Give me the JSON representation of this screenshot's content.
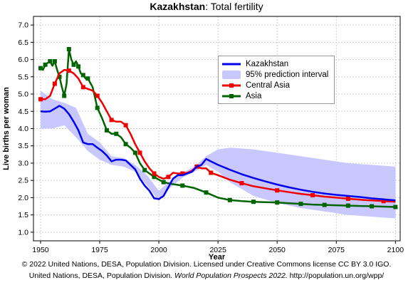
{
  "header": {
    "title_bold": "Kazakhstan",
    "title_rest": ": Total fertility"
  },
  "footer": {
    "line1": "© 2022 United Nations, DESA, Population Division. Licensed under Creative Commons license CC BY 3.0 IGO.",
    "line2_a": "United Nations, DESA, Population Division. ",
    "line2_italic": "World Population Prospects 2022.",
    "line2_b": " http://population.un.org/wpp/"
  },
  "chart_data": {
    "type": "line",
    "title": "Kazakhstan: Total fertility",
    "xlabel": "Year",
    "ylabel": "Live births per woman",
    "xlim": [
      1947,
      2102
    ],
    "ylim": [
      0.75,
      7.25
    ],
    "xticks": [
      1950,
      1975,
      2000,
      2025,
      2050,
      2075,
      2100
    ],
    "yticks": [
      1.0,
      1.5,
      2.0,
      2.5,
      3.0,
      3.5,
      4.0,
      4.5,
      5.0,
      5.5,
      6.0,
      6.5,
      7.0
    ],
    "grid": true,
    "legend_position": "upper-right",
    "colors": {
      "kazakhstan": "#0000ee",
      "interval": "#c8c8ff",
      "central_asia": "#ee0000",
      "asia": "#006400"
    },
    "legend": [
      {
        "key": "kazakhstan",
        "label": "Kazakhstan",
        "kind": "line"
      },
      {
        "key": "interval",
        "label": "95% prediction interval",
        "kind": "band"
      },
      {
        "key": "central_asia",
        "label": "Central Asia",
        "kind": "line-marker"
      },
      {
        "key": "asia",
        "label": "Asia",
        "kind": "line-marker"
      }
    ],
    "series": [
      {
        "name": "Kazakhstan",
        "key": "kazakhstan",
        "x": [
          1950,
          1952,
          1954,
          1956,
          1958,
          1960,
          1962,
          1964,
          1966,
          1968,
          1970,
          1972,
          1974,
          1976,
          1978,
          1980,
          1982,
          1984,
          1986,
          1988,
          1990,
          1992,
          1994,
          1996,
          1998,
          2000,
          2002,
          2004,
          2006,
          2008,
          2010,
          2012,
          2014,
          2016,
          2018,
          2020,
          2022,
          2025,
          2030,
          2035,
          2040,
          2045,
          2050,
          2055,
          2060,
          2065,
          2070,
          2075,
          2080,
          2085,
          2090,
          2095,
          2100
        ],
        "y": [
          4.5,
          4.49,
          4.5,
          4.58,
          4.66,
          4.58,
          4.42,
          4.2,
          3.95,
          3.6,
          3.55,
          3.55,
          3.45,
          3.35,
          3.22,
          3.05,
          3.1,
          3.1,
          3.08,
          2.95,
          2.82,
          2.55,
          2.35,
          2.2,
          1.98,
          1.96,
          2.05,
          2.3,
          2.55,
          2.65,
          2.65,
          2.7,
          2.75,
          2.9,
          2.95,
          3.12,
          3.05,
          2.95,
          2.81,
          2.68,
          2.57,
          2.47,
          2.38,
          2.3,
          2.23,
          2.17,
          2.12,
          2.08,
          2.05,
          2.02,
          1.98,
          1.95,
          1.92
        ]
      },
      {
        "name": "Central Asia",
        "key": "central_asia",
        "x": [
          1950,
          1952,
          1954,
          1956,
          1958,
          1960,
          1962,
          1964,
          1966,
          1968,
          1970,
          1972,
          1974,
          1976,
          1978,
          1980,
          1982,
          1984,
          1986,
          1988,
          1990,
          1992,
          1994,
          1996,
          1998,
          2000,
          2002,
          2004,
          2006,
          2008,
          2010,
          2012,
          2014,
          2016,
          2018,
          2020,
          2022,
          2025,
          2030,
          2035,
          2040,
          2045,
          2050,
          2055,
          2060,
          2065,
          2070,
          2075,
          2080,
          2085,
          2090,
          2095,
          2100
        ],
        "y": [
          4.85,
          4.85,
          4.95,
          5.3,
          5.6,
          5.7,
          5.68,
          5.6,
          5.45,
          5.2,
          5.15,
          5.1,
          4.95,
          4.75,
          4.5,
          4.25,
          4.2,
          4.2,
          4.1,
          3.85,
          3.55,
          3.3,
          3.05,
          2.85,
          2.7,
          2.6,
          2.55,
          2.6,
          2.72,
          2.7,
          2.7,
          2.72,
          2.78,
          2.9,
          2.85,
          2.85,
          2.72,
          2.65,
          2.52,
          2.42,
          2.33,
          2.27,
          2.21,
          2.16,
          2.11,
          2.07,
          2.03,
          2.0,
          1.97,
          1.94,
          1.92,
          1.9,
          1.88
        ]
      },
      {
        "name": "Asia",
        "key": "asia",
        "x": [
          1950,
          1951,
          1952,
          1953,
          1954,
          1955,
          1956,
          1957,
          1958,
          1959,
          1960,
          1961,
          1962,
          1963,
          1964,
          1965,
          1966,
          1967,
          1968,
          1969,
          1970,
          1972,
          1974,
          1976,
          1978,
          1980,
          1982,
          1984,
          1986,
          1988,
          1990,
          1992,
          1994,
          1996,
          1998,
          2000,
          2002,
          2005,
          2010,
          2015,
          2020,
          2025,
          2030,
          2035,
          2040,
          2045,
          2050,
          2055,
          2060,
          2065,
          2070,
          2075,
          2080,
          2085,
          2090,
          2095,
          2100
        ],
        "y": [
          5.75,
          5.7,
          5.85,
          5.9,
          5.95,
          5.82,
          5.95,
          5.7,
          5.5,
          5.2,
          4.95,
          5.3,
          6.3,
          6.0,
          5.85,
          5.95,
          5.8,
          5.6,
          5.55,
          5.45,
          5.45,
          5.2,
          4.6,
          4.3,
          3.95,
          3.85,
          3.85,
          3.75,
          3.55,
          3.45,
          3.3,
          3.0,
          2.8,
          2.7,
          2.6,
          2.52,
          2.45,
          2.4,
          2.35,
          2.28,
          2.15,
          2.0,
          1.93,
          1.9,
          1.88,
          1.87,
          1.86,
          1.84,
          1.82,
          1.8,
          1.79,
          1.78,
          1.77,
          1.76,
          1.75,
          1.74,
          1.73
        ]
      }
    ],
    "interval": {
      "name": "95% prediction interval",
      "key": "interval",
      "x": [
        1950,
        1955,
        1960,
        1965,
        1970,
        1975,
        1980,
        1985,
        1990,
        1995,
        2000,
        2005,
        2010,
        2015,
        2020,
        2025,
        2030,
        2040,
        2050,
        2060,
        2070,
        2080,
        2090,
        2100
      ],
      "low": [
        4.0,
        4.0,
        4.1,
        3.75,
        3.35,
        3.1,
        2.95,
        2.9,
        2.75,
        2.35,
        1.9,
        2.3,
        2.58,
        2.75,
        2.95,
        2.75,
        2.45,
        2.05,
        1.85,
        1.7,
        1.6,
        1.5,
        1.45,
        1.4
      ],
      "high": [
        5.1,
        4.85,
        4.75,
        4.6,
        3.85,
        3.6,
        3.2,
        3.15,
        2.95,
        2.65,
        2.2,
        2.5,
        2.72,
        2.9,
        3.2,
        3.4,
        3.45,
        3.4,
        3.3,
        3.2,
        3.1,
        3.0,
        2.95,
        2.9
      ]
    }
  }
}
